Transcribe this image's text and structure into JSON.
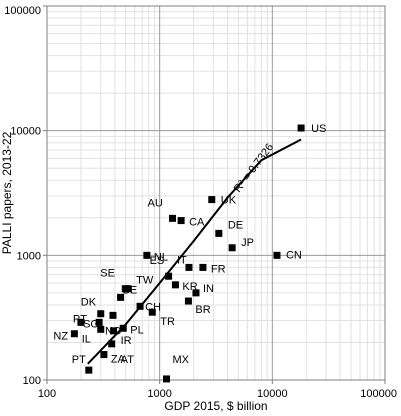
{
  "chart_data": {
    "type": "scatter",
    "xlabel": "GDP 2015, $ billion",
    "ylabel": "PALLI papers, 2013-22",
    "x_scale": "log",
    "y_scale": "log",
    "xlim": [
      100,
      100000
    ],
    "ylim": [
      100,
      100000
    ],
    "x_ticks": [
      100,
      1000,
      10000,
      100000
    ],
    "x_tick_labels": [
      "100",
      "1000",
      "10000",
      "100000"
    ],
    "y_ticks": [
      100,
      1000,
      10000,
      100000
    ],
    "y_tick_labels": [
      "100",
      "1000",
      "10000",
      "100000"
    ],
    "grid": "major and minor",
    "trendline": {
      "type": "power",
      "label": "R² = 0.7326",
      "points": [
        [
          230,
          135
        ],
        [
          500,
          280
        ],
        [
          1000,
          600
        ],
        [
          2000,
          1300
        ],
        [
          4000,
          2900
        ],
        [
          8000,
          5800
        ],
        [
          18000,
          8500
        ]
      ]
    },
    "points": [
      {
        "label": "US",
        "x": 18000,
        "y": 10500
      },
      {
        "label": "UK",
        "x": 2900,
        "y": 2800
      },
      {
        "label": "AU",
        "x": 1300,
        "y": 1980
      },
      {
        "label": "CA",
        "x": 1550,
        "y": 1900
      },
      {
        "label": "DE",
        "x": 3350,
        "y": 1500
      },
      {
        "label": "JP",
        "x": 4400,
        "y": 1150
      },
      {
        "label": "CN",
        "x": 11000,
        "y": 1000
      },
      {
        "label": "NL",
        "x": 770,
        "y": 1000
      },
      {
        "label": "IT",
        "x": 1820,
        "y": 800
      },
      {
        "label": "FR",
        "x": 2420,
        "y": 800
      },
      {
        "label": "ES",
        "x": 1200,
        "y": 680
      },
      {
        "label": "TW",
        "x": 525,
        "y": 540
      },
      {
        "label": "KR",
        "x": 1380,
        "y": 580
      },
      {
        "label": "IN",
        "x": 2100,
        "y": 500
      },
      {
        "label": "BE",
        "x": 450,
        "y": 460
      },
      {
        "label": "SE",
        "x": 495,
        "y": 540
      },
      {
        "label": "BR",
        "x": 1800,
        "y": 430
      },
      {
        "label": "CH",
        "x": 670,
        "y": 390
      },
      {
        "label": "DK",
        "x": 300,
        "y": 340
      },
      {
        "label": "TR",
        "x": 860,
        "y": 350
      },
      {
        "label": "NO",
        "x": 385,
        "y": 330
      },
      {
        "label": "PT",
        "x": 200,
        "y": 290
      },
      {
        "label": "SG",
        "x": 290,
        "y": 290
      },
      {
        "label": "PL",
        "x": 475,
        "y": 260
      },
      {
        "label": "IR",
        "x": 390,
        "y": 248
      },
      {
        "label": "IL",
        "x": 300,
        "y": 255
      },
      {
        "label": "NZ",
        "x": 175,
        "y": 235
      },
      {
        "label": "AT",
        "x": 375,
        "y": 195
      },
      {
        "label": "ZA",
        "x": 320,
        "y": 160
      },
      {
        "label": "PT",
        "x": 235,
        "y": 120
      },
      {
        "label": "MX",
        "x": 1150,
        "y": 102
      }
    ]
  }
}
